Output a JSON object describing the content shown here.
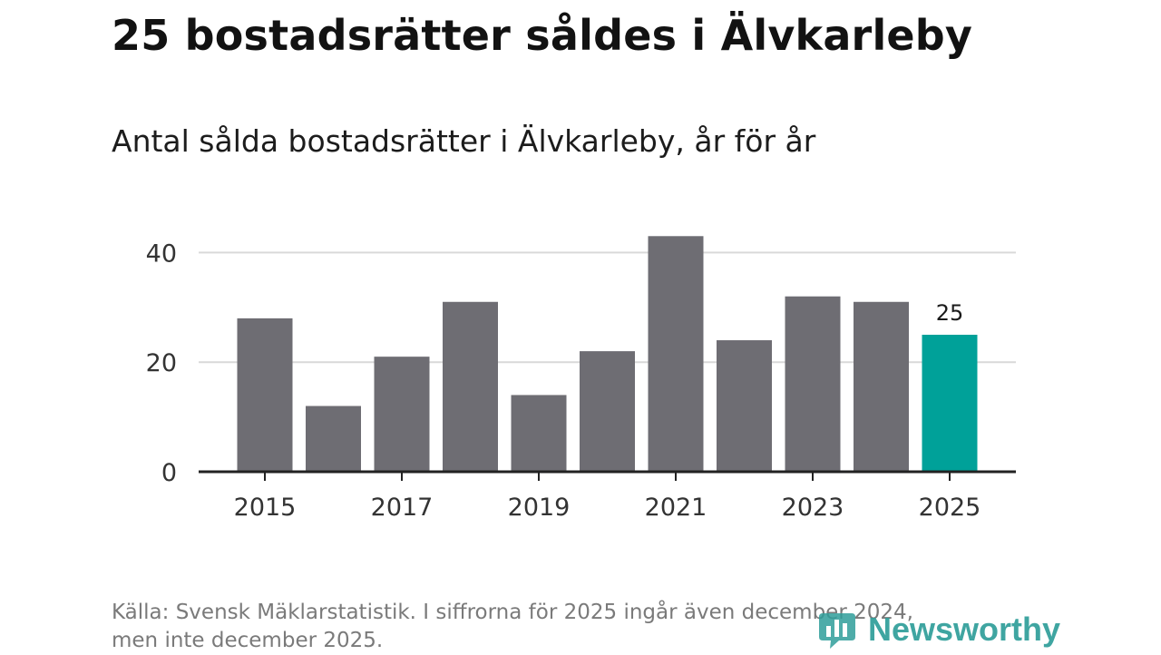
{
  "title": "25 bostadsrätter såldes i Älvkarleby",
  "subtitle": "Antal sålda bostadsrätter i Älvkarleby, år för år",
  "footnote": {
    "line1": "Källa: Svensk Mäklarstatistik. I siffrorna för 2025 ingår även december 2024,",
    "line2": "men inte december 2025."
  },
  "logo": {
    "text": "Newsworthy",
    "icon": "bar-chart-logo-icon",
    "color": "#2f9e9a"
  },
  "colors": {
    "bar": "#6e6d73",
    "highlight": "#00a199",
    "grid": "#d9d9d9",
    "axis": "#222222"
  },
  "chart_data": {
    "type": "bar",
    "categories": [
      "2015",
      "2016",
      "2017",
      "2018",
      "2019",
      "2020",
      "2021",
      "2022",
      "2023",
      "2024",
      "2025"
    ],
    "values": [
      28,
      12,
      21,
      31,
      14,
      22,
      43,
      24,
      32,
      31,
      25
    ],
    "highlight_category": "2025",
    "data_labels": [
      {
        "category": "2025",
        "label": "25"
      }
    ],
    "x_tick_labels": [
      "2015",
      "2017",
      "2019",
      "2021",
      "2023",
      "2025"
    ],
    "y_ticks": [
      0,
      20,
      40
    ],
    "ylim": [
      0,
      45
    ],
    "grid": true,
    "legend": "none",
    "title": "25 bostadsrätter såldes i Älvkarleby",
    "subtitle": "Antal sålda bostadsrätter i Älvkarleby, år för år",
    "xlabel": "",
    "ylabel": ""
  }
}
